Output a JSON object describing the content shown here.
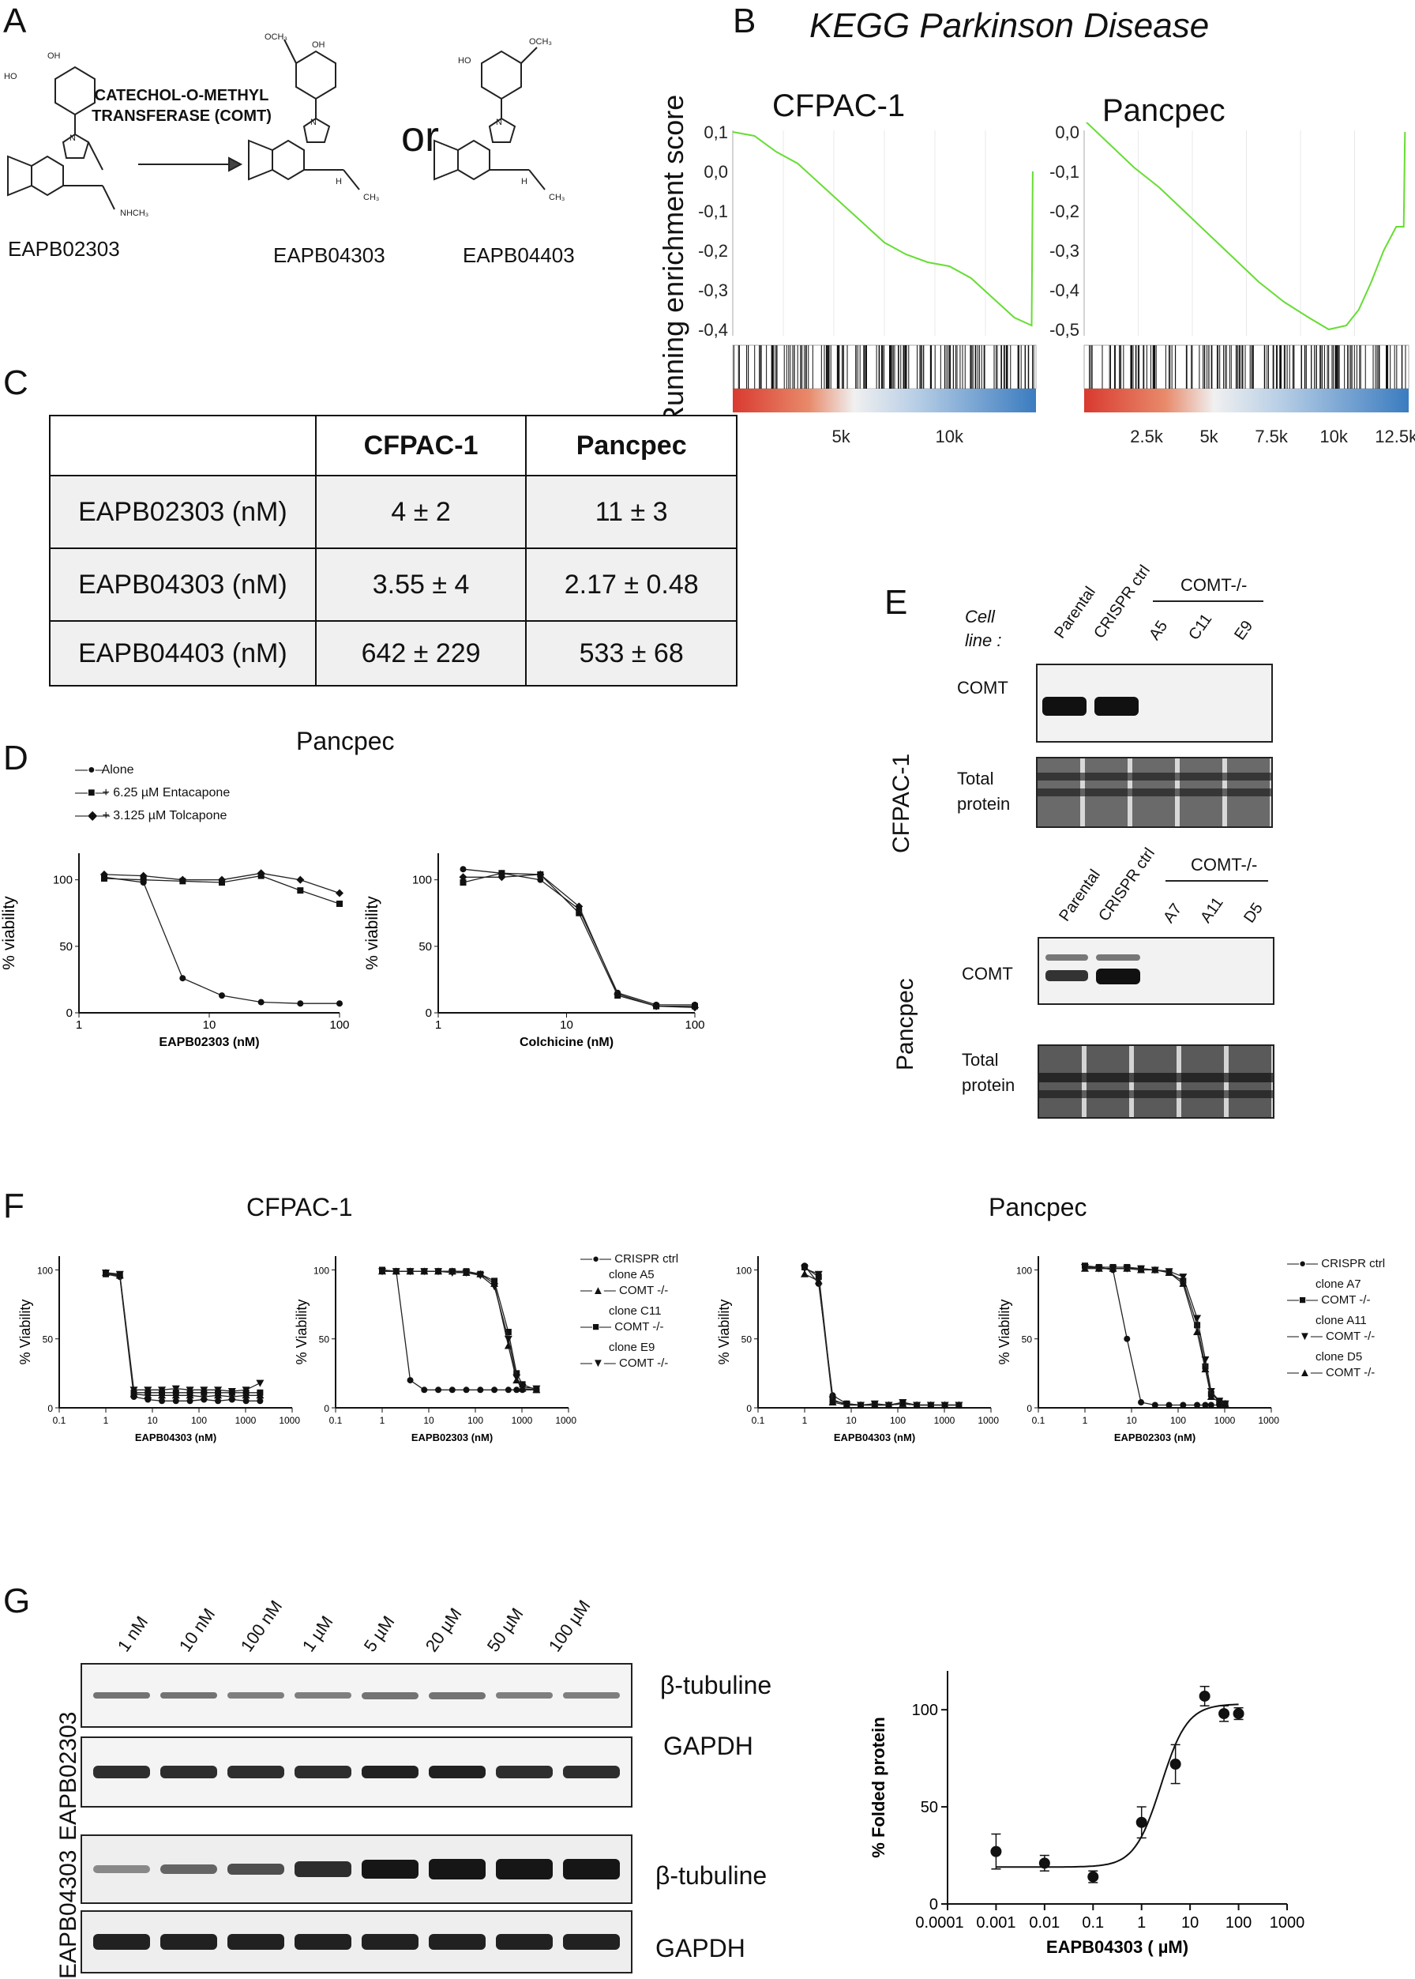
{
  "panels": {
    "A": "A",
    "B": "B",
    "C": "C",
    "D": "D",
    "E": "E",
    "F": "F",
    "G": "G"
  },
  "panelA": {
    "compounds": [
      "EAPB02303",
      "EAPB04303",
      "EAPB04403"
    ],
    "enzyme_line1": "CATECHOL-O-METHYL",
    "enzyme_line2": "TRANSFERASE (COMT)",
    "or": "or",
    "atoms": {
      "oh": "OH",
      "ho": "HO",
      "och3": "OCH₃",
      "ch3": "CH₃",
      "nhch3": "NHCH₃",
      "n": "N",
      "h": "H"
    }
  },
  "panelB": {
    "title": "KEGG Parkinson Disease",
    "ylabel": "Running enrichment score",
    "plots": [
      {
        "name": "CFPAC-1",
        "yticks": [
          "0,1",
          "0,0",
          "-0,1",
          "-0,2",
          "-0,3",
          "-0,4"
        ],
        "xticks": [
          "5k",
          "10k"
        ]
      },
      {
        "name": "Pancpec",
        "yticks": [
          "0,0",
          "-0,1",
          "-0,2",
          "-0,3",
          "-0,4",
          "-0,5"
        ],
        "xticks": [
          "2.5k",
          "5k",
          "7.5k",
          "10k",
          "12.5k"
        ]
      }
    ],
    "line_color": "#66dd33"
  },
  "panelC": {
    "headers": [
      "",
      "CFPAC-1",
      "Pancpec"
    ],
    "rows": [
      [
        "EAPB02303 (nM)",
        "4 ± 2",
        "11 ± 3"
      ],
      [
        "EAPB04303 (nM)",
        "3.55 ± 4",
        "2.17 ± 0.48"
      ],
      [
        "EAPB04403 (nM)",
        "642 ± 229",
        "533 ± 68"
      ]
    ]
  },
  "panelD": {
    "title": "Pancpec",
    "legend": [
      "Alone",
      "+ 6.25 µM Entacapone",
      "+ 3.125 µM Tolcapone"
    ],
    "ylabel": "% viability",
    "plots": [
      {
        "xlabel": "EAPB02303 (nM)"
      },
      {
        "xlabel": "Colchicine (nM)"
      }
    ],
    "xticks": [
      "1",
      "10",
      "100"
    ],
    "yticks": [
      "0",
      "50",
      "100"
    ]
  },
  "panelE": {
    "cell_line_label": [
      "Cell",
      "line :"
    ],
    "blots": [
      {
        "cell": "CFPAC-1",
        "lanes": [
          "Parental",
          "CRISPR ctrl",
          "A5",
          "C11",
          "E9"
        ],
        "ko": "COMT-/-",
        "rows": [
          "COMT",
          "Total protein"
        ]
      },
      {
        "cell": "Pancpec",
        "lanes": [
          "Parental",
          "CRISPR ctrl",
          "A7",
          "A11",
          "D5"
        ],
        "ko": "COMT-/-",
        "rows": [
          "COMT",
          "Total protein"
        ]
      }
    ],
    "total_label": [
      "Total",
      "protein"
    ]
  },
  "panelF": {
    "titles": [
      "CFPAC-1",
      "Pancpec"
    ],
    "ylabel": "% Viability",
    "xlabels": [
      "EAPB04303 (nM)",
      "EAPB02303 (nM)",
      "EAPB04303 (nM)",
      "EAPB02303 (nM)"
    ],
    "xticks": [
      "0.1",
      "1",
      "10",
      "100",
      "1000",
      "10000"
    ],
    "yticks": [
      "0",
      "50",
      "100"
    ],
    "legend_cfpac": [
      "CRISPR ctrl",
      "clone  A5",
      "COMT -/-",
      "clone  C11",
      "COMT -/-",
      "clone  E9",
      "COMT -/-"
    ],
    "legend_pancpec": [
      "CRISPR ctrl",
      "clone A7",
      "COMT -/-",
      "clone A11",
      "COMT -/-",
      "clone D5",
      "COMT -/-"
    ]
  },
  "panelG": {
    "doses": [
      "1 nM",
      "10 nM",
      "100 nM",
      "1 µM",
      "5 µM",
      "20 µM",
      "50 µM",
      "100 µM"
    ],
    "compounds": [
      "EAPB02303",
      "EAPB04303"
    ],
    "bands": [
      "β-tubuline",
      "GAPDH",
      "β-tubuline",
      "GAPDH"
    ]
  },
  "chart_data": [
    {
      "type": "line",
      "title": "CFPAC-1",
      "ylabel": "Running enrichment score",
      "ylim": [
        -0.4,
        0.1
      ],
      "x": [
        0,
        1000,
        2000,
        3000,
        4000,
        5000,
        6000,
        7000,
        8000,
        9000,
        10000,
        11000,
        12000,
        13000,
        13800,
        13850
      ],
      "y": [
        0.1,
        0.09,
        0.05,
        0.02,
        -0.03,
        -0.08,
        -0.13,
        -0.18,
        -0.21,
        -0.23,
        -0.24,
        -0.27,
        -0.32,
        -0.37,
        -0.39,
        0.0
      ]
    },
    {
      "type": "line",
      "title": "Pancpec",
      "ylabel": "Running enrichment score",
      "ylim": [
        -0.5,
        0.0
      ],
      "x": [
        0,
        1000,
        2000,
        3000,
        4000,
        5000,
        6000,
        7000,
        8000,
        9000,
        9800,
        10500,
        11000,
        11500,
        12000,
        12500,
        12800,
        12850
      ],
      "y": [
        0.03,
        -0.03,
        -0.09,
        -0.14,
        -0.2,
        -0.26,
        -0.32,
        -0.38,
        -0.43,
        -0.47,
        -0.5,
        -0.49,
        -0.45,
        -0.38,
        -0.3,
        -0.24,
        -0.24,
        0.0
      ]
    },
    {
      "type": "scatter",
      "xlabel": "EAPB02303 (nM)",
      "ylabel": "% viability",
      "xscale": "log",
      "x": [
        1.5625,
        3.125,
        6.25,
        12.5,
        25,
        50,
        100
      ],
      "series": [
        {
          "name": "Alone",
          "values": [
            102,
            98,
            26,
            13,
            8,
            7,
            7
          ]
        },
        {
          "name": "+ 6.25 µM Entacapone",
          "values": [
            101,
            100,
            99,
            98,
            103,
            92,
            82
          ]
        },
        {
          "name": "+ 3.125 µM Tolcapone",
          "values": [
            104,
            103,
            100,
            100,
            105,
            100,
            90
          ]
        }
      ]
    },
    {
      "type": "scatter",
      "xlabel": "Colchicine (nM)",
      "ylabel": "% viability",
      "xscale": "log",
      "x": [
        1.5625,
        3.125,
        6.25,
        12.5,
        25,
        50,
        100
      ],
      "series": [
        {
          "name": "Alone",
          "values": [
            108,
            105,
            100,
            78,
            15,
            6,
            6
          ]
        },
        {
          "name": "+ 6.25 µM Entacapone",
          "values": [
            98,
            105,
            104,
            75,
            13,
            5,
            5
          ]
        },
        {
          "name": "+ 3.125 µM Tolcapone",
          "values": [
            102,
            102,
            104,
            80,
            14,
            5,
            4
          ]
        }
      ]
    },
    {
      "type": "scatter",
      "xlabel": "EAPB04303 (nM)",
      "ylabel": "% Viability",
      "xscale": "log",
      "x": [
        1,
        2,
        4,
        8,
        16,
        32,
        64,
        128,
        256,
        512,
        1024,
        2048
      ],
      "series": [
        {
          "name": "CRISPR ctrl",
          "values": [
            97,
            95,
            8,
            6,
            5,
            5,
            5,
            6,
            5,
            6,
            5,
            5
          ]
        },
        {
          "name": "clone A5",
          "values": [
            98,
            96,
            10,
            9,
            9,
            9,
            9,
            8,
            9,
            8,
            9,
            9
          ]
        },
        {
          "name": "clone C11",
          "values": [
            97,
            96,
            11,
            11,
            11,
            11,
            11,
            11,
            11,
            11,
            11,
            11
          ]
        },
        {
          "name": "clone E9",
          "values": [
            98,
            97,
            13,
            13,
            13,
            14,
            13,
            13,
            13,
            12,
            13,
            18
          ]
        }
      ]
    },
    {
      "type": "scatter",
      "xlabel": "EAPB02303 (nM)",
      "ylabel": "% Viability",
      "xscale": "log",
      "x": [
        1,
        2,
        4,
        8,
        16,
        32,
        64,
        128,
        256,
        512,
        768,
        1024,
        2048
      ],
      "series": [
        {
          "name": "CRISPR ctrl",
          "values": [
            100,
            99,
            20,
            13,
            13,
            13,
            13,
            13,
            13,
            13,
            13,
            13,
            13
          ]
        },
        {
          "name": "clone A5",
          "values": [
            99,
            99,
            99,
            99,
            99,
            99,
            98,
            97,
            90,
            45,
            20,
            14,
            13
          ]
        },
        {
          "name": "clone C11",
          "values": [
            100,
            99,
            99,
            99,
            99,
            99,
            99,
            97,
            92,
            55,
            25,
            17,
            13
          ]
        },
        {
          "name": "clone E9",
          "values": [
            99,
            99,
            99,
            99,
            99,
            98,
            98,
            96,
            88,
            50,
            22,
            15,
            14
          ]
        }
      ]
    },
    {
      "type": "scatter",
      "xlabel": "EAPB04303 (nM)",
      "ylabel": "% Viability",
      "xscale": "log",
      "x": [
        1,
        2,
        4,
        8,
        16,
        32,
        64,
        128,
        256,
        512,
        1024,
        2048
      ],
      "series": [
        {
          "name": "CRISPR ctrl",
          "values": [
            103,
            90,
            9,
            3,
            2,
            2,
            2,
            3,
            2,
            2,
            2,
            2
          ]
        },
        {
          "name": "clone A7",
          "values": [
            102,
            95,
            5,
            3,
            2,
            2,
            2,
            3,
            2,
            2,
            2,
            2
          ]
        },
        {
          "name": "clone A11",
          "values": [
            101,
            97,
            6,
            2,
            2,
            3,
            2,
            4,
            2,
            2,
            2,
            2
          ]
        },
        {
          "name": "clone D5",
          "values": [
            97,
            92,
            4,
            2,
            2,
            2,
            2,
            3,
            2,
            2,
            2,
            2
          ]
        }
      ]
    },
    {
      "type": "scatter",
      "xlabel": "EAPB02303 (nM)",
      "ylabel": "% Viability",
      "xscale": "log",
      "x": [
        1,
        2,
        4,
        8,
        16,
        32,
        64,
        128,
        256,
        384,
        512,
        768,
        1024
      ],
      "series": [
        {
          "name": "CRISPR ctrl",
          "values": [
            102,
            102,
            100,
            50,
            4,
            2,
            2,
            2,
            2,
            2,
            2,
            2,
            2
          ]
        },
        {
          "name": "clone A7",
          "values": [
            103,
            102,
            102,
            102,
            101,
            100,
            98,
            92,
            60,
            30,
            10,
            5,
            3
          ]
        },
        {
          "name": "clone A11",
          "values": [
            102,
            101,
            101,
            101,
            101,
            100,
            99,
            95,
            65,
            35,
            12,
            5,
            3
          ]
        },
        {
          "name": "clone D5",
          "values": [
            101,
            101,
            101,
            101,
            100,
            100,
            98,
            90,
            55,
            28,
            8,
            4,
            3
          ]
        }
      ]
    },
    {
      "type": "scatter",
      "xlabel": "EAPB04303 ( µM)",
      "ylabel": "% Folded protein",
      "xscale": "log",
      "xticks": [
        "0.0001",
        "0.001",
        "0.01",
        "0.1",
        "1",
        "10",
        "100",
        "1000"
      ],
      "yticks": [
        "0",
        "50",
        "100"
      ],
      "x": [
        0.001,
        0.01,
        0.1,
        1,
        5,
        20,
        50,
        100
      ],
      "values": [
        27,
        21,
        14,
        42,
        72,
        107,
        98,
        98
      ],
      "errors": [
        9,
        4,
        3,
        8,
        10,
        5,
        4,
        3
      ]
    }
  ]
}
